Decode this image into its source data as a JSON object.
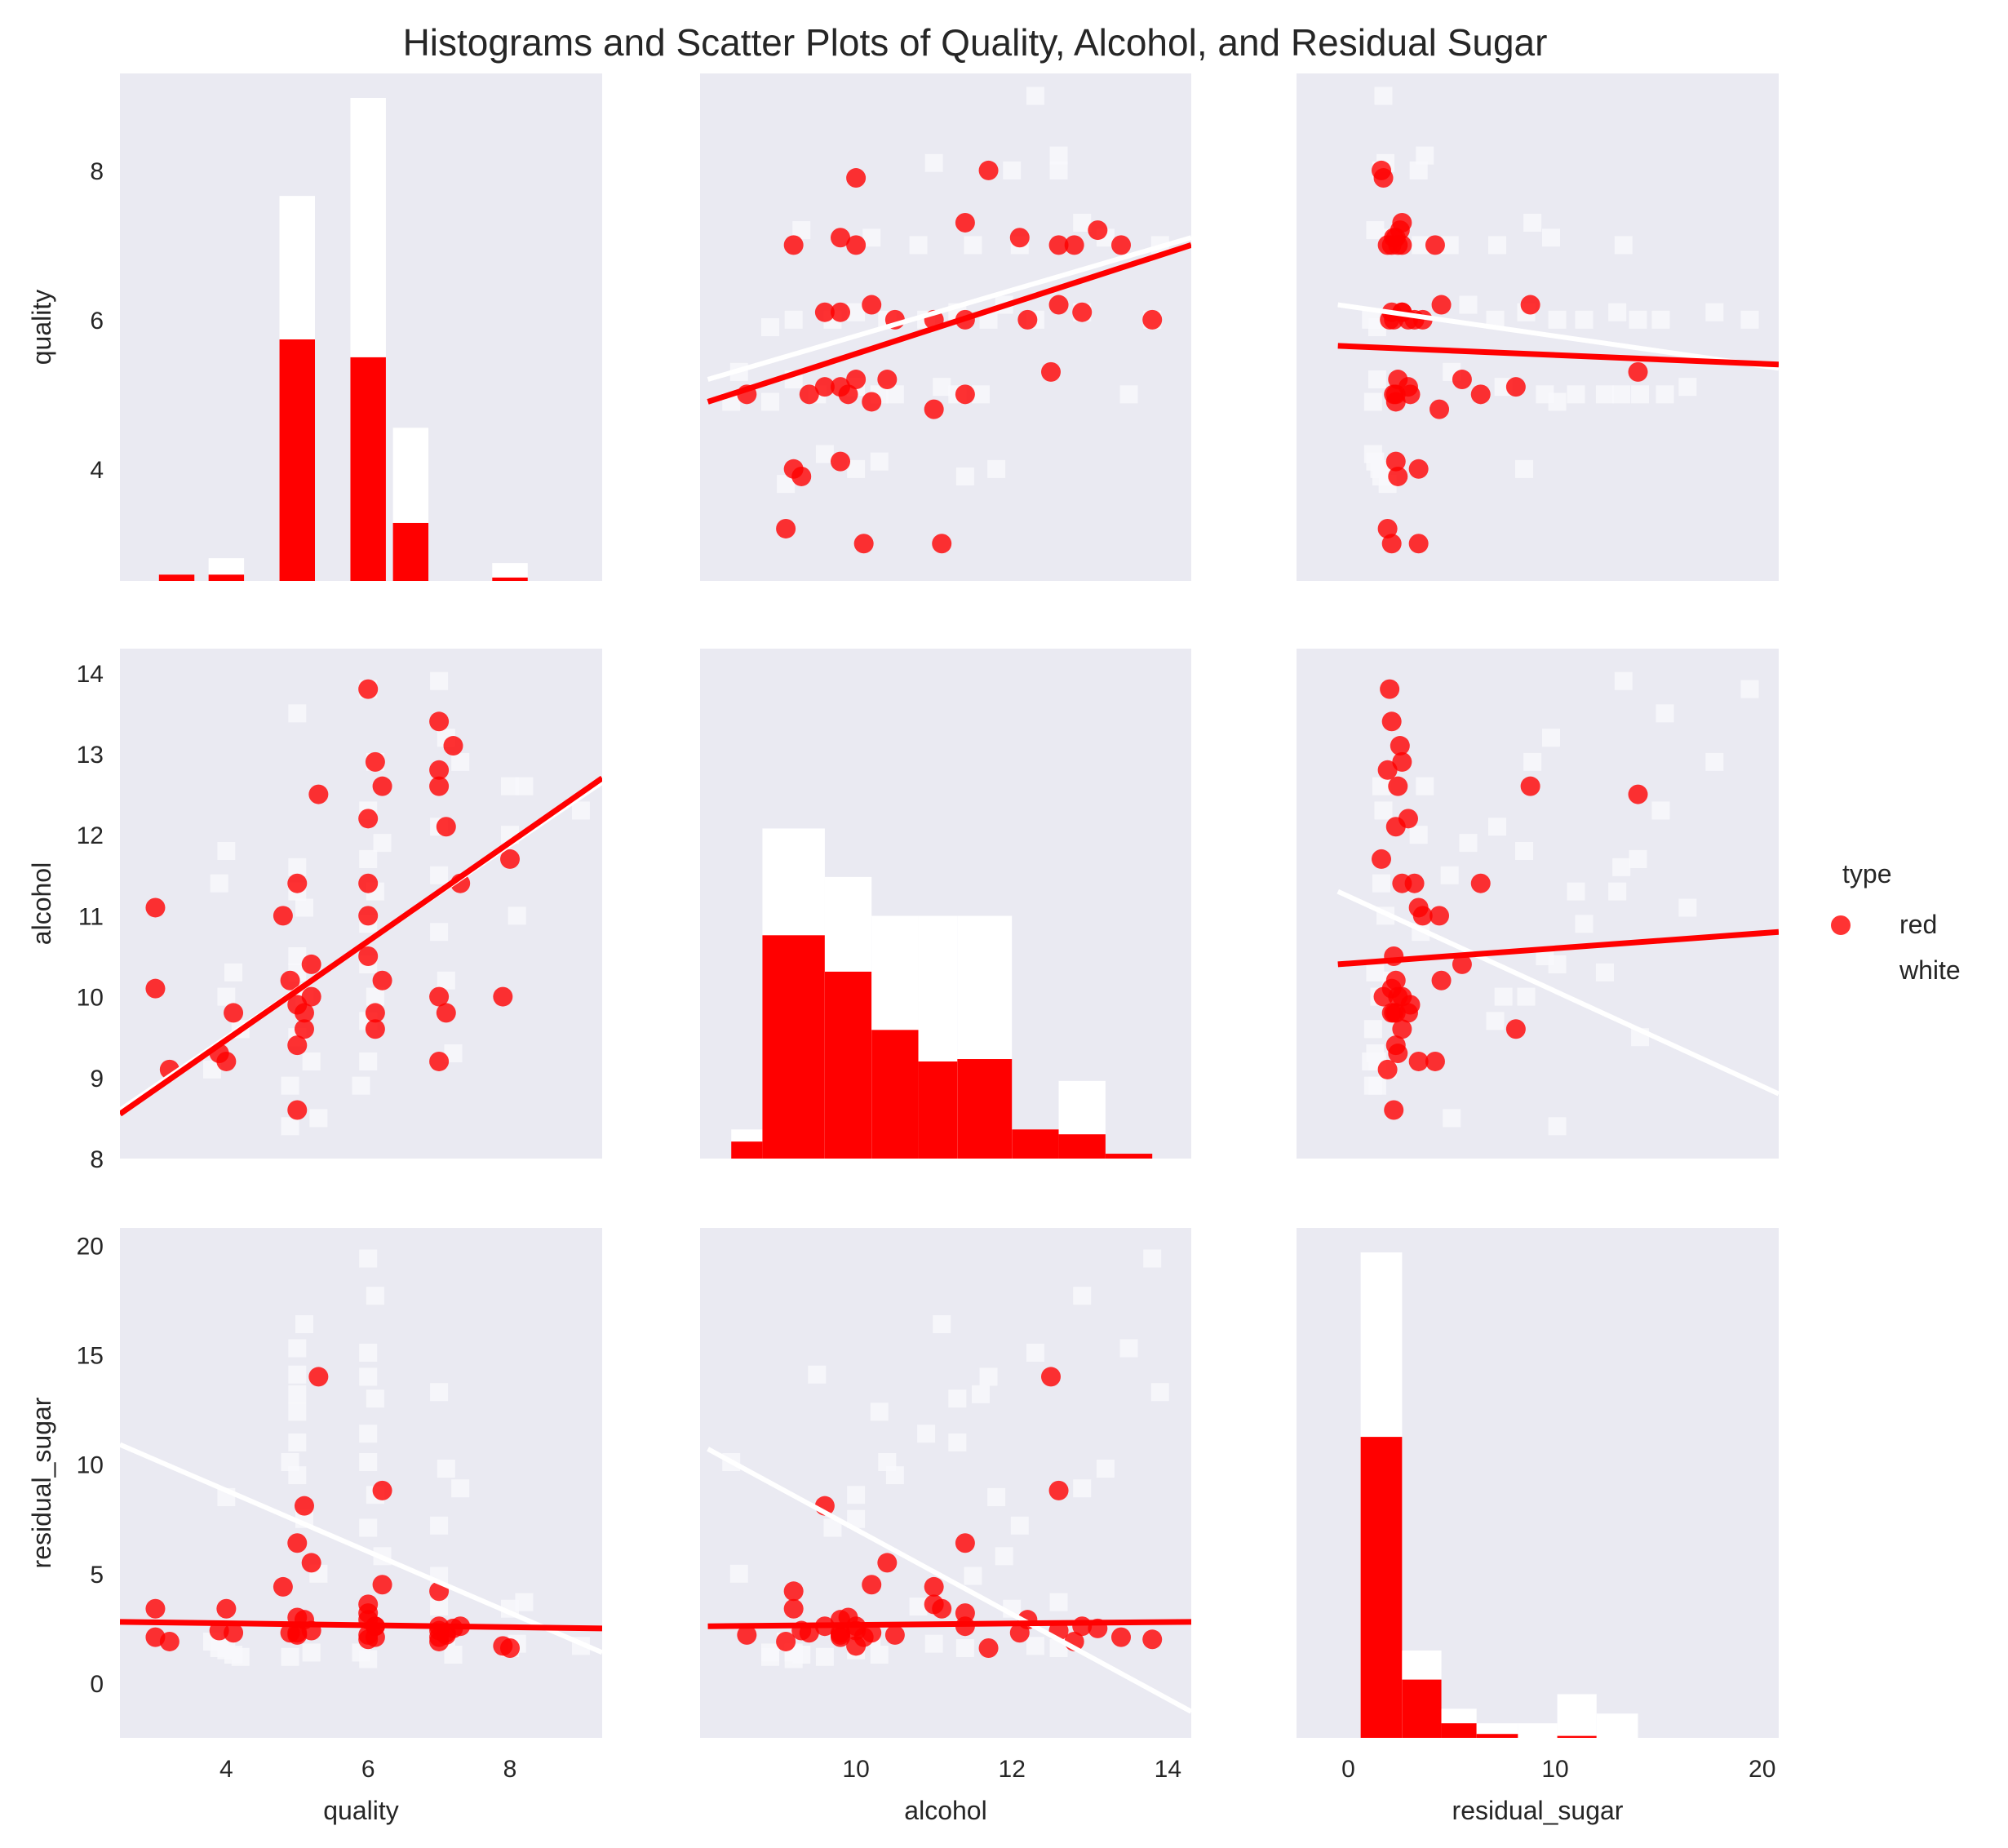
{
  "title": "Histograms and Scatter Plots of Quality, Alcohol, and Residual Sugar",
  "colors": {
    "panel_bg": "#eaeaf2",
    "red": "#ff0000",
    "white": "#f8f8fb",
    "text": "#262626"
  },
  "legend": {
    "title": "type",
    "entries": [
      "red",
      "white"
    ],
    "placement": "right-center"
  },
  "axis_labels": {
    "quality": "quality",
    "alcohol": "alcohol",
    "residual_sugar": "residual_sugar"
  },
  "ticks": {
    "quality": [
      "4",
      "6",
      "8"
    ],
    "alcohol_y": [
      "8",
      "9",
      "10",
      "11",
      "12",
      "13",
      "14"
    ],
    "alcohol_x": [
      "10",
      "12",
      "14"
    ],
    "residual_sugar_y": [
      "0",
      "5",
      "10",
      "15",
      "20"
    ],
    "residual_sugar_x": [
      "0",
      "10",
      "20"
    ]
  },
  "chart_data": {
    "type": "scatter",
    "layout": "pairplot 3x3, histograms on diagonal, scatter with regression lines off-diagonal",
    "variables": [
      "quality",
      "alcohol",
      "residual_sugar"
    ],
    "ranges": {
      "quality": [
        2.5,
        9.3
      ],
      "alcohol": [
        8.0,
        14.3
      ],
      "residual_sugar": [
        -2.5,
        20.8
      ]
    },
    "grid": false,
    "series": [
      {
        "name": "red",
        "marker": "circle",
        "color": "#ff0000",
        "points": [
          [
            3,
            11.1,
            3.4
          ],
          [
            3,
            10.1,
            2.1
          ],
          [
            3.2,
            9.1,
            1.9
          ],
          [
            3.9,
            9.3,
            2.4
          ],
          [
            4,
            9.2,
            3.4
          ],
          [
            4.1,
            9.8,
            2.3
          ],
          [
            4.8,
            11,
            4.4
          ],
          [
            4.9,
            10.2,
            2.3
          ],
          [
            5,
            9.4,
            2.3
          ],
          [
            5,
            8.6,
            2.2
          ],
          [
            5,
            11.4,
            6.4
          ],
          [
            5.1,
            9.8,
            2.9
          ],
          [
            5.2,
            10.0,
            2.4
          ],
          [
            5.3,
            12.5,
            14.0
          ],
          [
            5.1,
            9.6,
            8.1
          ],
          [
            5.2,
            10.4,
            5.5
          ],
          [
            5.0,
            9.9,
            3.0
          ],
          [
            6,
            13.8,
            2.0
          ],
          [
            6,
            12.2,
            2.9
          ],
          [
            6.1,
            12.9,
            2.6
          ],
          [
            6.2,
            12.6,
            8.8
          ],
          [
            6.0,
            10.5,
            2.2
          ],
          [
            6.0,
            11.0,
            3.6
          ],
          [
            6.1,
            9.6,
            2.6
          ],
          [
            6.2,
            10.2,
            4.5
          ],
          [
            6.1,
            9.8,
            2.1
          ],
          [
            6.0,
            11.4,
            3.2
          ],
          [
            7,
            13.4,
            2.1
          ],
          [
            7.2,
            13.1,
            2.5
          ],
          [
            7,
            12.8,
            1.9
          ],
          [
            7.1,
            12.1,
            2.3
          ],
          [
            7.3,
            11.4,
            2.6
          ],
          [
            7,
            10.0,
            2.6
          ],
          [
            7.1,
            9.8,
            2.2
          ],
          [
            7.0,
            9.2,
            4.2
          ],
          [
            7.0,
            12.6,
            2.4
          ],
          [
            7.9,
            10.0,
            1.7
          ],
          [
            8,
            11.7,
            1.6
          ]
        ]
      },
      {
        "name": "white",
        "marker": "square",
        "color": "#f8f8fb",
        "points": [
          [
            3.9,
            11.4,
            1.6
          ],
          [
            4.0,
            11.8,
            8.5
          ],
          [
            4.1,
            10.3,
            1.3
          ],
          [
            4.0,
            10.0,
            1.5
          ],
          [
            3.8,
            9.1,
            1.9
          ],
          [
            4.2,
            9.6,
            1.2
          ],
          [
            5,
            13.5,
            15.3
          ],
          [
            5,
            11.6,
            13.2
          ],
          [
            5,
            11.3,
            11.0
          ],
          [
            5.1,
            11.1,
            16.4
          ],
          [
            5,
            10.5,
            9.5
          ],
          [
            5,
            10.3,
            12.4
          ],
          [
            5.1,
            10.0,
            7.5
          ],
          [
            5,
            9.5,
            14.1
          ],
          [
            5.2,
            9.2,
            1.4
          ],
          [
            4.9,
            8.9,
            1.2
          ],
          [
            4.9,
            8.4,
            10.1
          ],
          [
            5.3,
            8.5,
            5.0
          ],
          [
            6,
            13.8,
            19.4
          ],
          [
            6.1,
            12.9,
            17.7
          ],
          [
            6,
            12.3,
            15.1
          ],
          [
            6,
            11.7,
            14.0
          ],
          [
            6.1,
            11.3,
            13.0
          ],
          [
            6,
            10.9,
            11.4
          ],
          [
            6,
            10.4,
            10.1
          ],
          [
            6.1,
            10.0,
            8.6
          ],
          [
            6,
            9.7,
            7.1
          ],
          [
            6,
            9.2,
            1.1
          ],
          [
            5.9,
            8.9,
            1.4
          ],
          [
            6.2,
            11.9,
            5.8
          ],
          [
            7,
            13.9,
            13.3
          ],
          [
            7.1,
            13.2,
            9.8
          ],
          [
            7,
            12.1,
            7.2
          ],
          [
            7,
            11.5,
            4.9
          ],
          [
            7,
            10.8,
            3.5
          ],
          [
            7.1,
            10.2,
            2.1
          ],
          [
            7.2,
            9.3,
            1.3
          ],
          [
            7.3,
            12.9,
            8.9
          ],
          [
            8,
            12.6,
            1.6
          ],
          [
            8,
            12.0,
            3.4
          ],
          [
            8.1,
            11.0,
            1.8
          ],
          [
            8.2,
            12.6,
            3.7
          ],
          [
            9,
            12.3,
            1.7
          ]
        ]
      }
    ],
    "histograms": {
      "quality": {
        "bin_centers": [
          3.3,
          4.0,
          5.0,
          6.0,
          6.6,
          8.0,
          8.7
        ],
        "red_height_frac": [
          0.013,
          0.013,
          0.5,
          0.463,
          0.12,
          0.007,
          0.0
        ],
        "white_height_frac": [
          0.013,
          0.047,
          0.797,
          1.0,
          0.317,
          0.037,
          0.0
        ]
      },
      "alcohol": {
        "bins": [
          8.4,
          8.8,
          9.6,
          10.2,
          10.8,
          11.3,
          12.0,
          12.6,
          13.2,
          13.8
        ],
        "red_height_frac": [
          0.035,
          0.46,
          0.385,
          0.265,
          0.2,
          0.205,
          0.06,
          0.05,
          0.01
        ],
        "white_height_frac": [
          0.06,
          0.68,
          0.58,
          0.5,
          0.5,
          0.5,
          0.06,
          0.16,
          0.0
        ]
      },
      "residual_sugar": {
        "bins": [
          0.6,
          2.6,
          4.5,
          6.2,
          8.2,
          10.1,
          12.0,
          14.0
        ],
        "red_height_frac": [
          0.62,
          0.12,
          0.03,
          0.008,
          0.0,
          0.004,
          0.0
        ],
        "white_height_frac": [
          1.0,
          0.18,
          0.06,
          0.03,
          0.03,
          0.09,
          0.05
        ]
      }
    },
    "regression": {
      "quality_vs_alcohol": {
        "red": [
          [
            8.1,
            4.9
          ],
          [
            14.3,
            7.0
          ]
        ],
        "white": [
          [
            8.1,
            5.2
          ],
          [
            14.3,
            7.1
          ]
        ]
      },
      "quality_vs_residual_sugar": {
        "red": [
          [
            -0.5,
            5.65
          ],
          [
            20.8,
            5.4
          ]
        ],
        "white": [
          [
            -0.5,
            6.2
          ],
          [
            20.8,
            5.35
          ]
        ]
      },
      "alcohol_vs_quality": {
        "red": [
          [
            2.5,
            8.55
          ],
          [
            9.3,
            12.7
          ]
        ],
        "white": [
          [
            2.5,
            8.6
          ],
          [
            9.3,
            12.65
          ]
        ]
      },
      "alcohol_vs_residual_sugar": {
        "red": [
          [
            -0.5,
            10.4
          ],
          [
            20.8,
            10.8
          ]
        ],
        "white": [
          [
            -0.5,
            11.3
          ],
          [
            20.8,
            8.8
          ]
        ]
      },
      "residual_sugar_vs_quality": {
        "red": [
          [
            2.5,
            2.8
          ],
          [
            9.3,
            2.5
          ]
        ],
        "white": [
          [
            2.5,
            10.9
          ],
          [
            9.3,
            1.4
          ]
        ]
      },
      "residual_sugar_vs_alcohol": {
        "red": [
          [
            8.1,
            2.6
          ],
          [
            14.3,
            2.8
          ]
        ],
        "white": [
          [
            8.1,
            10.7
          ],
          [
            14.3,
            -1.3
          ]
        ]
      }
    }
  }
}
